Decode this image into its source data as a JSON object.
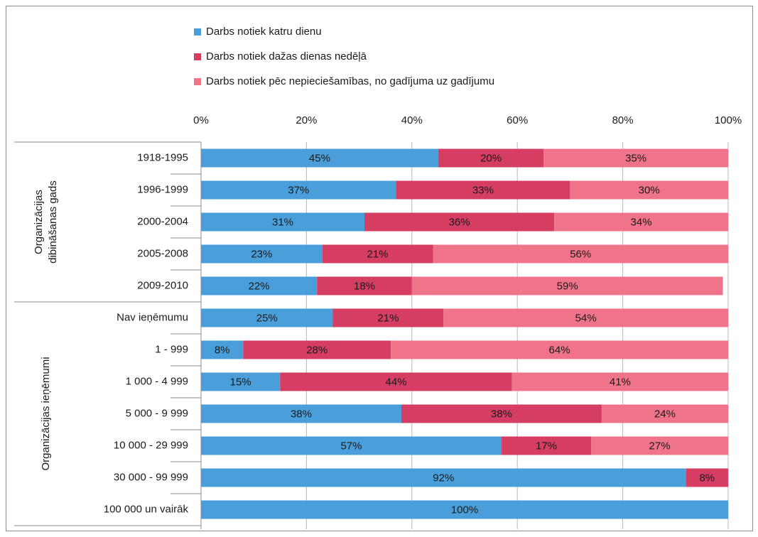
{
  "chart_data": {
    "type": "stacked-barh",
    "categories": [
      "1918-1995",
      "1996-1999",
      "2000-2004",
      "2005-2008",
      "2009-2010",
      "Nav ieņēmumu",
      "1 - 999",
      "1 000 - 4 999",
      "5 000 - 9 999",
      "10 000 - 29 999",
      "30 000 - 99 999",
      "100 000 un vairāk"
    ],
    "groups": [
      {
        "label": [
          "Organizācijas",
          "dibināšanas gads"
        ],
        "start": 0,
        "count": 5
      },
      {
        "label": [
          "Organizācijas ieņēmumi"
        ],
        "start": 5,
        "count": 7
      }
    ],
    "series": [
      {
        "name": "Darbs notiek katru dienu",
        "color": "#4a9fdb",
        "values": [
          45,
          37,
          31,
          23,
          22,
          25,
          8,
          15,
          38,
          57,
          92,
          100
        ],
        "value_labels": [
          "45%",
          "37%",
          "31%",
          "23%",
          "22%",
          "25%",
          "8%",
          "15%",
          "38%",
          "57%",
          "92%",
          "100%"
        ]
      },
      {
        "name": "Darbs notiek dažas dienas nedēļā",
        "color": "#d63d62",
        "values": [
          20,
          33,
          36,
          21,
          18,
          21,
          28,
          44,
          38,
          17,
          8,
          null
        ],
        "value_labels": [
          "20%",
          "33%",
          "36%",
          "21%",
          "18%",
          "21%",
          "28%",
          "44%",
          "38%",
          "17%",
          "8%",
          null
        ]
      },
      {
        "name": "Darbs notiek pēc nepieciešamības, no gadījuma uz gadījumu",
        "color": "#f07489",
        "values": [
          35,
          30,
          34,
          56,
          59,
          54,
          64,
          41,
          24,
          27,
          null,
          null
        ],
        "value_labels": [
          "35%",
          "30%",
          "34%",
          "56%",
          "59%",
          "54%",
          "64%",
          "41%",
          "24%",
          "27%",
          null,
          null
        ]
      }
    ],
    "xlim": [
      0,
      100
    ],
    "xticks": [
      {
        "value": 0,
        "label": "0%"
      },
      {
        "value": 20,
        "label": "20%"
      },
      {
        "value": 40,
        "label": "40%"
      },
      {
        "value": 60,
        "label": "60%"
      },
      {
        "value": 80,
        "label": "80%"
      },
      {
        "value": 100,
        "label": "100%"
      }
    ],
    "grid": true,
    "legend": "top"
  }
}
